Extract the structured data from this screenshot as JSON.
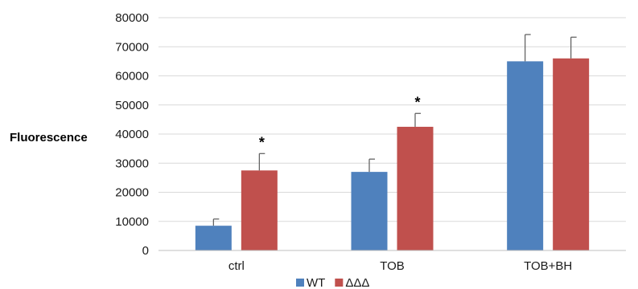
{
  "chart_data": {
    "type": "bar",
    "title": "",
    "xlabel": "",
    "ylabel": "Fluorescence",
    "categories": [
      "ctrl",
      "TOB",
      "TOB+BH"
    ],
    "ylim": [
      0,
      80000
    ],
    "yticks": [
      0,
      10000,
      20000,
      30000,
      40000,
      50000,
      60000,
      70000,
      80000
    ],
    "grid": true,
    "legend_position": "bottom",
    "series": [
      {
        "name": "WT",
        "color": "#4f81bd",
        "values": [
          8500,
          27000,
          65000
        ],
        "errors": [
          2300,
          4400,
          9200
        ]
      },
      {
        "name": "ΔΔΔ",
        "color": "#c0504d",
        "values": [
          27500,
          42500,
          66000
        ],
        "errors": [
          5800,
          4600,
          7300
        ]
      }
    ],
    "annotations": [
      {
        "category": "ctrl",
        "series": "ΔΔΔ",
        "text": "*"
      },
      {
        "category": "TOB",
        "series": "ΔΔΔ",
        "text": "*"
      }
    ]
  }
}
